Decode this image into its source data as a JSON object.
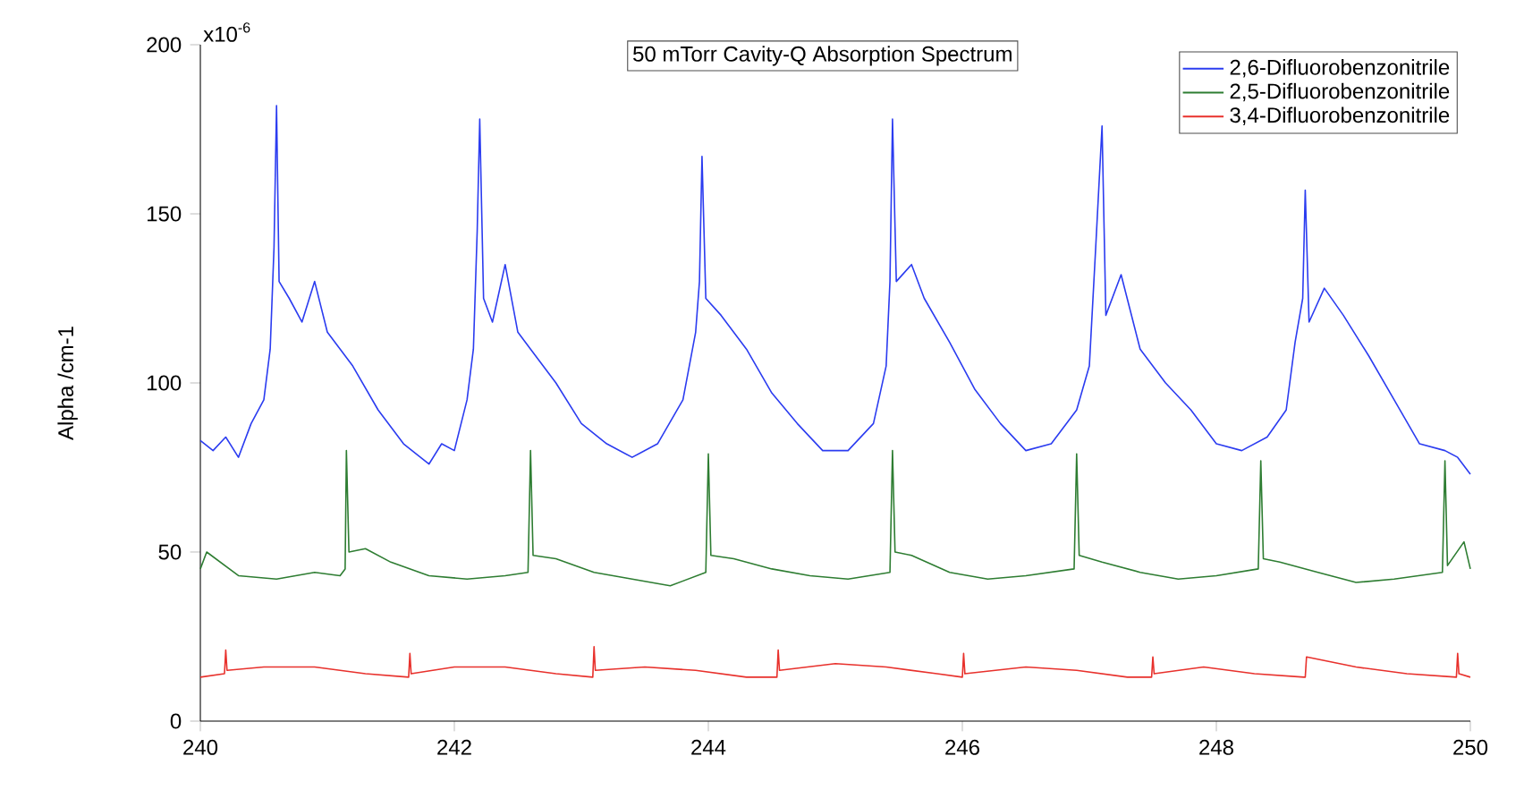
{
  "chart_data": {
    "type": "line",
    "title": "50 mTorr Cavity-Q Absorption Spectrum",
    "ylabel": "Alpha /cm-1",
    "annotations": [
      "x10$^{-6}$"
    ],
    "xlim": [
      240,
      250
    ],
    "xticks": [
      240,
      242,
      244,
      246,
      248,
      250
    ],
    "ylim": [
      0,
      200
    ],
    "yticks": [
      0,
      50,
      100,
      150,
      200
    ],
    "grid": false,
    "legend": "top right",
    "marker": "none",
    "line_style": "solid",
    "series": [
      {
        "name": "2,6-Difluorobenzonitrile",
        "color": "#2b3cf0",
        "x": [
          240.0,
          240.1,
          240.2,
          240.3,
          240.4,
          240.5,
          240.55,
          240.58,
          240.6,
          240.62,
          240.7,
          240.8,
          240.9,
          241.0,
          241.2,
          241.4,
          241.6,
          241.8,
          241.9,
          242.0,
          242.1,
          242.15,
          242.18,
          242.2,
          242.23,
          242.3,
          242.4,
          242.5,
          242.6,
          242.8,
          243.0,
          243.2,
          243.4,
          243.6,
          243.8,
          243.9,
          243.93,
          243.95,
          243.98,
          244.1,
          244.3,
          244.5,
          244.7,
          244.9,
          245.1,
          245.3,
          245.4,
          245.43,
          245.45,
          245.48,
          245.6,
          245.7,
          245.9,
          246.1,
          246.3,
          246.5,
          246.7,
          246.9,
          247.0,
          247.05,
          247.1,
          247.13,
          247.25,
          247.4,
          247.6,
          247.8,
          248.0,
          248.2,
          248.4,
          248.55,
          248.62,
          248.68,
          248.7,
          248.73,
          248.85,
          249.0,
          249.2,
          249.4,
          249.6,
          249.8,
          249.9,
          250.0
        ],
        "values": [
          83,
          80,
          84,
          78,
          88,
          95,
          110,
          140,
          182,
          130,
          125,
          118,
          130,
          115,
          105,
          92,
          82,
          76,
          82,
          80,
          95,
          110,
          145,
          178,
          125,
          118,
          135,
          115,
          110,
          100,
          88,
          82,
          78,
          82,
          95,
          115,
          130,
          167,
          125,
          120,
          110,
          97,
          88,
          80,
          80,
          88,
          105,
          130,
          178,
          130,
          135,
          125,
          112,
          98,
          88,
          80,
          82,
          92,
          105,
          140,
          176,
          120,
          132,
          110,
          100,
          92,
          82,
          80,
          84,
          92,
          112,
          125,
          157,
          118,
          128,
          120,
          108,
          95,
          82,
          80,
          78,
          73
        ]
      },
      {
        "name": "2,5-Difluorobenzonitrile",
        "color": "#2e7d32",
        "x": [
          240.0,
          240.05,
          240.3,
          240.6,
          240.9,
          241.1,
          241.14,
          241.15,
          241.17,
          241.3,
          241.5,
          241.8,
          242.1,
          242.4,
          242.58,
          242.6,
          242.62,
          242.8,
          243.1,
          243.4,
          243.7,
          243.98,
          244.0,
          244.02,
          244.2,
          244.5,
          244.8,
          245.1,
          245.43,
          245.45,
          245.47,
          245.6,
          245.9,
          246.2,
          246.5,
          246.88,
          246.9,
          246.92,
          247.1,
          247.4,
          247.7,
          248.0,
          248.33,
          248.35,
          248.37,
          248.5,
          248.8,
          249.1,
          249.4,
          249.78,
          249.8,
          249.82,
          249.95,
          250.0
        ],
        "values": [
          45,
          50,
          43,
          42,
          44,
          43,
          45,
          80,
          50,
          51,
          47,
          43,
          42,
          43,
          44,
          80,
          49,
          48,
          44,
          42,
          40,
          44,
          79,
          49,
          48,
          45,
          43,
          42,
          44,
          80,
          50,
          49,
          44,
          42,
          43,
          45,
          79,
          49,
          47,
          44,
          42,
          43,
          45,
          77,
          48,
          47,
          44,
          41,
          42,
          44,
          77,
          46,
          53,
          45
        ]
      },
      {
        "name": "3,4-Difluorobenzonitrile",
        "color": "#e8312c",
        "x": [
          240.0,
          240.19,
          240.2,
          240.21,
          240.5,
          240.9,
          241.3,
          241.64,
          241.65,
          241.66,
          242.0,
          242.4,
          242.8,
          243.09,
          243.1,
          243.11,
          243.5,
          243.9,
          244.3,
          244.54,
          244.55,
          244.56,
          245.0,
          245.4,
          245.8,
          246.0,
          246.01,
          246.02,
          246.5,
          246.9,
          247.3,
          247.49,
          247.5,
          247.51,
          247.9,
          248.3,
          248.69,
          248.7,
          248.71,
          249.1,
          249.5,
          249.89,
          249.9,
          249.91,
          250.0
        ],
        "values": [
          13,
          14,
          21,
          15,
          16,
          16,
          14,
          13,
          20,
          14,
          16,
          16,
          14,
          13,
          22,
          15,
          16,
          15,
          13,
          13,
          21,
          15,
          17,
          16,
          14,
          13,
          20,
          14,
          16,
          15,
          13,
          13,
          19,
          14,
          16,
          14,
          13,
          13,
          19,
          16,
          14,
          13,
          20,
          14,
          13
        ]
      }
    ]
  }
}
